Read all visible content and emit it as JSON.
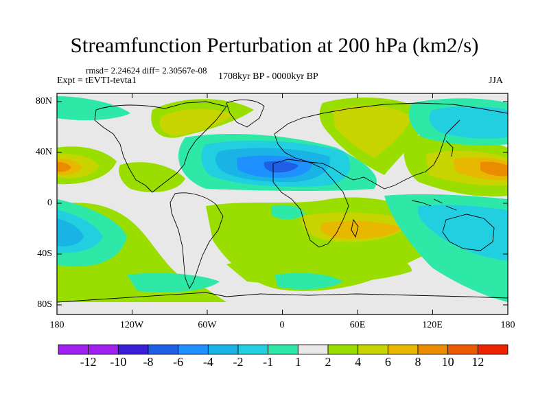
{
  "title": "Streamfunction Perturbation at 200 hPa (km2/s)",
  "rmsd_line": "rmsd= 2.24624  diff= 2.30567e-08",
  "experiment": "Expt = tEVTI-tevta1",
  "period": "1708kyr BP - 0000kyr BP",
  "season": "JJA",
  "map": {
    "projection": "equirectangular",
    "lat_labels": [
      "80N",
      "40N",
      "0",
      "40S",
      "80S"
    ],
    "lon_labels": [
      "180",
      "120W",
      "60W",
      "0",
      "60E",
      "120E",
      "180"
    ],
    "background_color": "#e8e8e8"
  },
  "colorbar": {
    "labels": [
      "-12",
      "-10",
      "-8",
      "-6",
      "-4",
      "-2",
      "-1",
      "1",
      "2",
      "4",
      "6",
      "8",
      "10",
      "12"
    ],
    "colors": [
      "#a020f0",
      "#3a1fd8",
      "#1f5fe6",
      "#1e90ff",
      "#1ab3e6",
      "#22cfe0",
      "#2ee8a8",
      "#e8e8e8",
      "#9ade00",
      "#c8d400",
      "#e8b800",
      "#eb8c00",
      "#ec5a00",
      "#ef2200"
    ]
  }
}
